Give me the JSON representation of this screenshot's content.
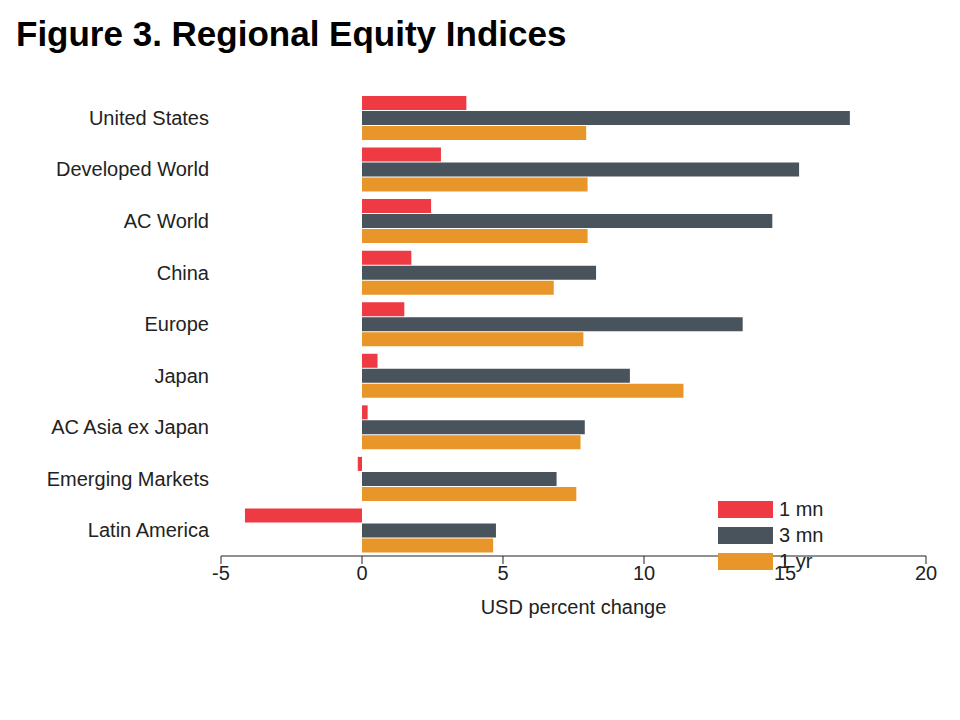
{
  "chart_data": {
    "type": "bar",
    "title": "Figure 3. Regional Equity Indices",
    "orientation": "horizontal",
    "x_label": "USD percent change",
    "categories": [
      "United States",
      "Developed World",
      "AC World",
      "China",
      "Europe",
      "Japan",
      "AC Asia ex Japan",
      "Emerging Markets",
      "Latin America"
    ],
    "series": [
      {
        "name": "1 mn",
        "color": "#ee3a43",
        "values": [
          3.7,
          2.8,
          2.45,
          1.75,
          1.5,
          0.55,
          0.2,
          -0.15,
          -4.15
        ]
      },
      {
        "name": "3 mn",
        "color": "#48535b",
        "values": [
          17.3,
          15.5,
          14.55,
          8.3,
          13.5,
          9.5,
          7.9,
          6.9,
          4.75
        ]
      },
      {
        "name": "1 yr",
        "color": "#e8962a",
        "values": [
          7.95,
          8.0,
          8.0,
          6.8,
          7.85,
          11.4,
          7.75,
          7.6,
          4.65
        ]
      }
    ],
    "xlim": [
      -5,
      20
    ],
    "xticks": [
      -5,
      0,
      5,
      10,
      15,
      20
    ],
    "grid": false,
    "legend": "lower right"
  }
}
